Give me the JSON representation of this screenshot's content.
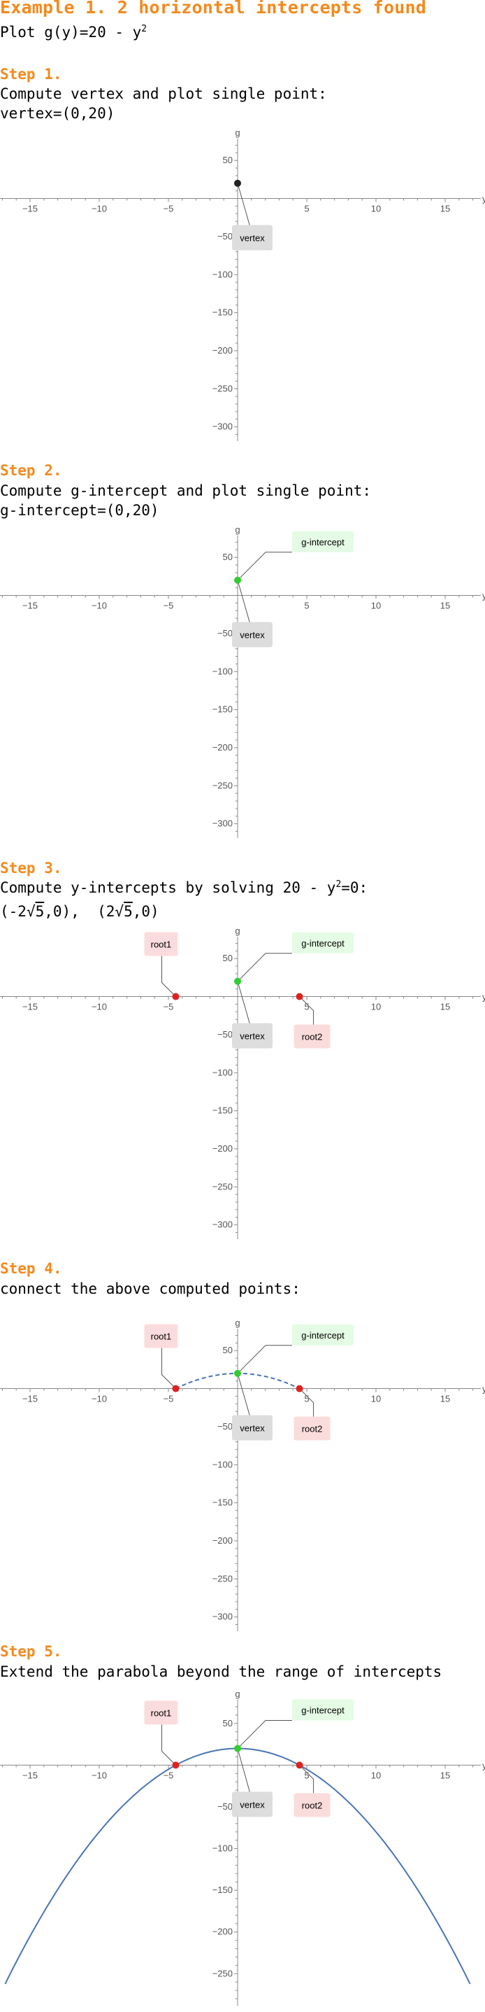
{
  "title": "Example 1. 2 horizontal intercepts found",
  "plot_prefix": "Plot ",
  "function_lhs": "g(y)=20 - y",
  "function_exp": "2",
  "steps": [
    {
      "heading": "Step 1.",
      "description": "Compute vertex and plot single point:",
      "result": "vertex=(0,20)"
    },
    {
      "heading": "Step 2.",
      "description": "Compute g-intercept and plot single point:",
      "result": "g-intercept=(0,20)"
    },
    {
      "heading": "Step 3.",
      "description_prefix": "Compute y-intercepts by solving 20 - y",
      "description_exp": "2",
      "description_suffix": "=0:",
      "result_left": "(-2",
      "result_left_sqrt": "5",
      "result_left_end": ",0),",
      "result_right": "(2",
      "result_right_sqrt": "5",
      "result_right_end": ",0)"
    },
    {
      "heading": "Step 4.",
      "description": "connect the above computed points:"
    },
    {
      "heading": "Step 5.",
      "description": "Extend the parabola beyond the range of intercepts"
    }
  ],
  "colors": {
    "accent": "#f28a1e",
    "vertex_point": "#222222",
    "g_intercept_point": "#33cc33",
    "root_point": "#dd2222",
    "curve": "#4a74b5",
    "label_vertex_bg": "#dddddd",
    "label_g_bg": "#e4fbe4",
    "label_root_bg": "#fbdcdc",
    "axis": "#888888"
  },
  "chart_data": [
    {
      "type": "scatter",
      "xlabel": "y",
      "ylabel": "g",
      "xlim": [
        -17,
        17.5
      ],
      "ylim": [
        -315,
        75
      ],
      "x_ticks": [
        -15,
        -10,
        -5,
        5,
        10,
        15
      ],
      "y_ticks": [
        50,
        -50,
        -100,
        -150,
        -200,
        -250,
        -300
      ],
      "points": [
        {
          "name": "vertex",
          "x": 0,
          "y": 20,
          "color": "vertex_point"
        }
      ],
      "labels": [
        {
          "text": "vertex",
          "point": 0,
          "style": "vertex"
        }
      ],
      "curve": "none"
    },
    {
      "type": "scatter",
      "xlabel": "y",
      "ylabel": "g",
      "xlim": [
        -17,
        17.5
      ],
      "ylim": [
        -315,
        75
      ],
      "x_ticks": [
        -15,
        -10,
        -5,
        5,
        10,
        15
      ],
      "y_ticks": [
        50,
        -50,
        -100,
        -150,
        -200,
        -250,
        -300
      ],
      "points": [
        {
          "name": "g-intercept",
          "x": 0,
          "y": 20,
          "color": "g_intercept_point"
        }
      ],
      "labels": [
        {
          "text": "vertex",
          "point": 0,
          "style": "vertex"
        },
        {
          "text": "g-intercept",
          "point": 0,
          "style": "g"
        }
      ],
      "curve": "none"
    },
    {
      "type": "scatter",
      "xlabel": "y",
      "ylabel": "g",
      "xlim": [
        -17,
        17.5
      ],
      "ylim": [
        -315,
        75
      ],
      "x_ticks": [
        -15,
        -10,
        -5,
        5,
        10,
        15
      ],
      "y_ticks": [
        50,
        -50,
        -100,
        -150,
        -200,
        -250,
        -300
      ],
      "points": [
        {
          "name": "g-intercept",
          "x": 0,
          "y": 20,
          "color": "g_intercept_point"
        },
        {
          "name": "root1",
          "x": -4.472,
          "y": 0,
          "color": "root_point"
        },
        {
          "name": "root2",
          "x": 4.472,
          "y": 0,
          "color": "root_point"
        }
      ],
      "labels": [
        {
          "text": "vertex",
          "point": 0,
          "style": "vertex"
        },
        {
          "text": "g-intercept",
          "point": 0,
          "style": "g"
        },
        {
          "text": "root1",
          "point": 1,
          "style": "root1"
        },
        {
          "text": "root2",
          "point": 2,
          "style": "root2"
        }
      ],
      "curve": "none"
    },
    {
      "type": "line",
      "xlabel": "y",
      "ylabel": "g",
      "xlim": [
        -17,
        17.5
      ],
      "ylim": [
        -315,
        75
      ],
      "x_ticks": [
        -15,
        -10,
        -5,
        5,
        10,
        15
      ],
      "y_ticks": [
        50,
        -50,
        -100,
        -150,
        -200,
        -250,
        -300
      ],
      "points": [
        {
          "name": "g-intercept",
          "x": 0,
          "y": 20,
          "color": "g_intercept_point"
        },
        {
          "name": "root1",
          "x": -4.472,
          "y": 0,
          "color": "root_point"
        },
        {
          "name": "root2",
          "x": 4.472,
          "y": 0,
          "color": "root_point"
        }
      ],
      "labels": [
        {
          "text": "vertex",
          "point": 0,
          "style": "vertex"
        },
        {
          "text": "g-intercept",
          "point": 0,
          "style": "g"
        },
        {
          "text": "root1",
          "point": 1,
          "style": "root1"
        },
        {
          "text": "root2",
          "point": 2,
          "style": "root2"
        }
      ],
      "curve": "dashed",
      "curve_range": [
        -4.472,
        4.472
      ]
    },
    {
      "type": "line",
      "xlabel": "y",
      "ylabel": "g",
      "xlim": [
        -17,
        17.5
      ],
      "ylim": [
        -285,
        75
      ],
      "x_ticks": [
        -15,
        -10,
        -5,
        5,
        10,
        15
      ],
      "y_ticks": [
        50,
        -50,
        -100,
        -150,
        -200,
        -250
      ],
      "points": [
        {
          "name": "g-intercept",
          "x": 0,
          "y": 20,
          "color": "g_intercept_point"
        },
        {
          "name": "root1",
          "x": -4.472,
          "y": 0,
          "color": "root_point"
        },
        {
          "name": "root2",
          "x": 4.472,
          "y": 0,
          "color": "root_point"
        }
      ],
      "labels": [
        {
          "text": "vertex",
          "point": 0,
          "style": "vertex"
        },
        {
          "text": "g-intercept",
          "point": 0,
          "style": "g"
        },
        {
          "text": "root1",
          "point": 1,
          "style": "root1"
        },
        {
          "text": "root2",
          "point": 2,
          "style": "root2"
        }
      ],
      "curve": "solid",
      "curve_range": [
        -16.8,
        16.8
      ]
    }
  ]
}
